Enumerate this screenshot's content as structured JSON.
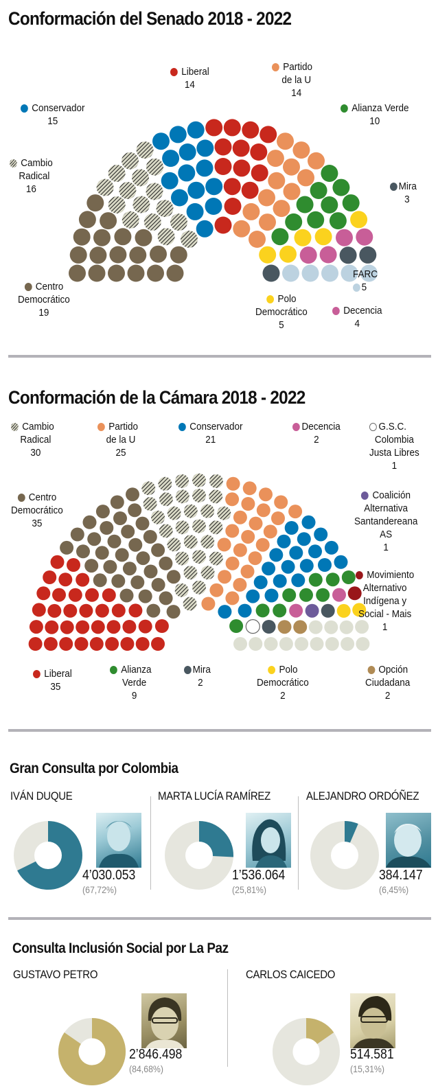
{
  "colors": {
    "centro": "#76674f",
    "cambio": "#d9d9c6",
    "conservador": "#0077b6",
    "liberal": "#c8281d",
    "partido_u": "#ea915a",
    "alianza": "#2f8c2f",
    "mira": "#495760",
    "decencia": "#c85e98",
    "polo": "#fbd21e",
    "farc": "#bcd2e0",
    "opcion": "#b08b55",
    "mais": "#99161a",
    "coalicion": "#6d5b9a",
    "gsc": "#ffffff",
    "other_gray": "#dddfd2",
    "teal": "#2f7a91",
    "teal_light": "#e6e6de",
    "gold": "#c5b26c",
    "gold_light": "#e6e6de"
  },
  "senado": {
    "title": "Conformación del Senado 2018 - 2022",
    "parties": [
      {
        "key": "centro",
        "name": [
          "Centro",
          "Democrático"
        ],
        "seats": 19,
        "count_label": "19"
      },
      {
        "key": "cambio",
        "name": [
          "Cambio",
          "Radical"
        ],
        "seats": 16,
        "count_label": "16",
        "hatch": true
      },
      {
        "key": "conservador",
        "name": [
          "Conservador"
        ],
        "seats": 15,
        "count_label": "15"
      },
      {
        "key": "liberal",
        "name": [
          "Liberal"
        ],
        "seats": 14,
        "count_label": "14"
      },
      {
        "key": "partido_u",
        "name": [
          "Partido",
          "de la U"
        ],
        "seats": 14,
        "count_label": "14"
      },
      {
        "key": "alianza",
        "name": [
          "Alianza Verde"
        ],
        "seats": 10,
        "count_label": "10"
      },
      {
        "key": "polo",
        "name": [
          "Polo",
          "Democrático"
        ],
        "seats": 5,
        "count_label": "5"
      },
      {
        "key": "decencia",
        "name": [
          "Decencia"
        ],
        "seats": 4,
        "count_label": "4"
      },
      {
        "key": "mira",
        "name": [
          "Mira"
        ],
        "seats": 3,
        "count_label": "3"
      },
      {
        "key": "farc",
        "name": [
          "FARC"
        ],
        "seats": 5,
        "count_label": "5"
      }
    ]
  },
  "camara": {
    "title": "Conformación de la Cámara 2018 - 2022",
    "parties": [
      {
        "key": "liberal",
        "name": [
          "Liberal"
        ],
        "seats": 35,
        "count_label": "35"
      },
      {
        "key": "centro",
        "name": [
          "Centro",
          "Democrático"
        ],
        "seats": 35,
        "count_label": "35"
      },
      {
        "key": "cambio",
        "name": [
          "Cambio",
          "Radical"
        ],
        "seats": 30,
        "count_label": "30",
        "hatch": true
      },
      {
        "key": "partido_u",
        "name": [
          "Partido",
          "de la U"
        ],
        "seats": 25,
        "count_label": "25"
      },
      {
        "key": "conservador",
        "name": [
          "Conservador"
        ],
        "seats": 21,
        "count_label": "21"
      },
      {
        "key": "alianza",
        "name": [
          "Alianza",
          "Verde"
        ],
        "seats": 9,
        "count_label": "9"
      },
      {
        "key": "decencia",
        "name": [
          "Decencia"
        ],
        "seats": 2,
        "count_label": "2"
      },
      {
        "key": "gsc",
        "name": [
          "G.S.C.",
          "Colombia",
          "Justa Libres"
        ],
        "seats": 1,
        "count_label": "1",
        "ring": true
      },
      {
        "key": "mais",
        "name": [
          "Movimiento",
          "Alternativo",
          "Indígena y",
          "Social - Mais"
        ],
        "seats": 1,
        "count_label": "1"
      },
      {
        "key": "coalicion",
        "name": [
          "Coalición",
          "Alternativa",
          "Santandereana",
          "AS"
        ],
        "seats": 1,
        "count_label": "1"
      },
      {
        "key": "mira",
        "name": [
          "Mira"
        ],
        "seats": 2,
        "count_label": "2"
      },
      {
        "key": "polo",
        "name": [
          "Polo",
          "Democrático"
        ],
        "seats": 2,
        "count_label": "2"
      },
      {
        "key": "opcion",
        "name": [
          "Opción",
          "Ciudadana"
        ],
        "seats": 2,
        "count_label": "2"
      },
      {
        "key": "other_gray",
        "name": [],
        "seats": 13,
        "count_label": ""
      }
    ]
  },
  "gran_consulta": {
    "title": "Gran Consulta por Colombia",
    "candidates": [
      {
        "name": "IVÁN DUQUE",
        "votes": "4’030.053",
        "pct_label": "(67,72%)",
        "pct": 67.72
      },
      {
        "name": "MARTA LUCÍA RAMÍREZ",
        "votes": "1’536.064",
        "pct_label": "(25,81%)",
        "pct": 25.81
      },
      {
        "name": "ALEJANDRO ORDÓÑEZ",
        "votes": "384.147",
        "pct_label": "(6,45%)",
        "pct": 6.45
      }
    ]
  },
  "inclusion": {
    "title": "Consulta Inclusión Social por La Paz",
    "candidates": [
      {
        "name": "GUSTAVO PETRO",
        "votes": "2’846.498",
        "pct_label": "(84,68%)",
        "pct": 84.68
      },
      {
        "name": "CARLOS CAICEDO",
        "votes": "514.581",
        "pct_label": "(15,31%)",
        "pct": 15.31
      }
    ]
  },
  "chart_data": [
    {
      "type": "parliament",
      "title": "Conformación del Senado 2018 - 2022",
      "categories": [
        "Centro Democrático",
        "Cambio Radical",
        "Conservador",
        "Liberal",
        "Partido de la U",
        "Alianza Verde",
        "Polo Democrático",
        "Decencia",
        "Mira",
        "FARC"
      ],
      "values": [
        19,
        16,
        15,
        14,
        14,
        10,
        5,
        4,
        3,
        5
      ]
    },
    {
      "type": "parliament",
      "title": "Conformación de la Cámara 2018 - 2022",
      "categories": [
        "Liberal",
        "Centro Democrático",
        "Cambio Radical",
        "Partido de la U",
        "Conservador",
        "Alianza Verde",
        "Decencia",
        "G.S.C. Colombia Justa Libres",
        "Movimiento Alternativo Indígena y Social - Mais",
        "Coalición Alternativa Santandereana AS",
        "Mira",
        "Polo Democrático",
        "Opción Ciudadana"
      ],
      "values": [
        35,
        35,
        30,
        25,
        21,
        9,
        2,
        1,
        1,
        1,
        2,
        2,
        2
      ]
    },
    {
      "type": "pie",
      "title": "Gran Consulta por Colombia",
      "categories": [
        "IVÁN DUQUE",
        "MARTA LUCÍA RAMÍREZ",
        "ALEJANDRO ORDÓÑEZ"
      ],
      "values": [
        67.72,
        25.81,
        6.45
      ],
      "votes": [
        4030053,
        1536064,
        384147
      ]
    },
    {
      "type": "pie",
      "title": "Consulta Inclusión Social por La Paz",
      "categories": [
        "GUSTAVO PETRO",
        "CARLOS CAICEDO"
      ],
      "values": [
        84.68,
        15.31
      ],
      "votes": [
        2846498,
        514581
      ]
    }
  ]
}
